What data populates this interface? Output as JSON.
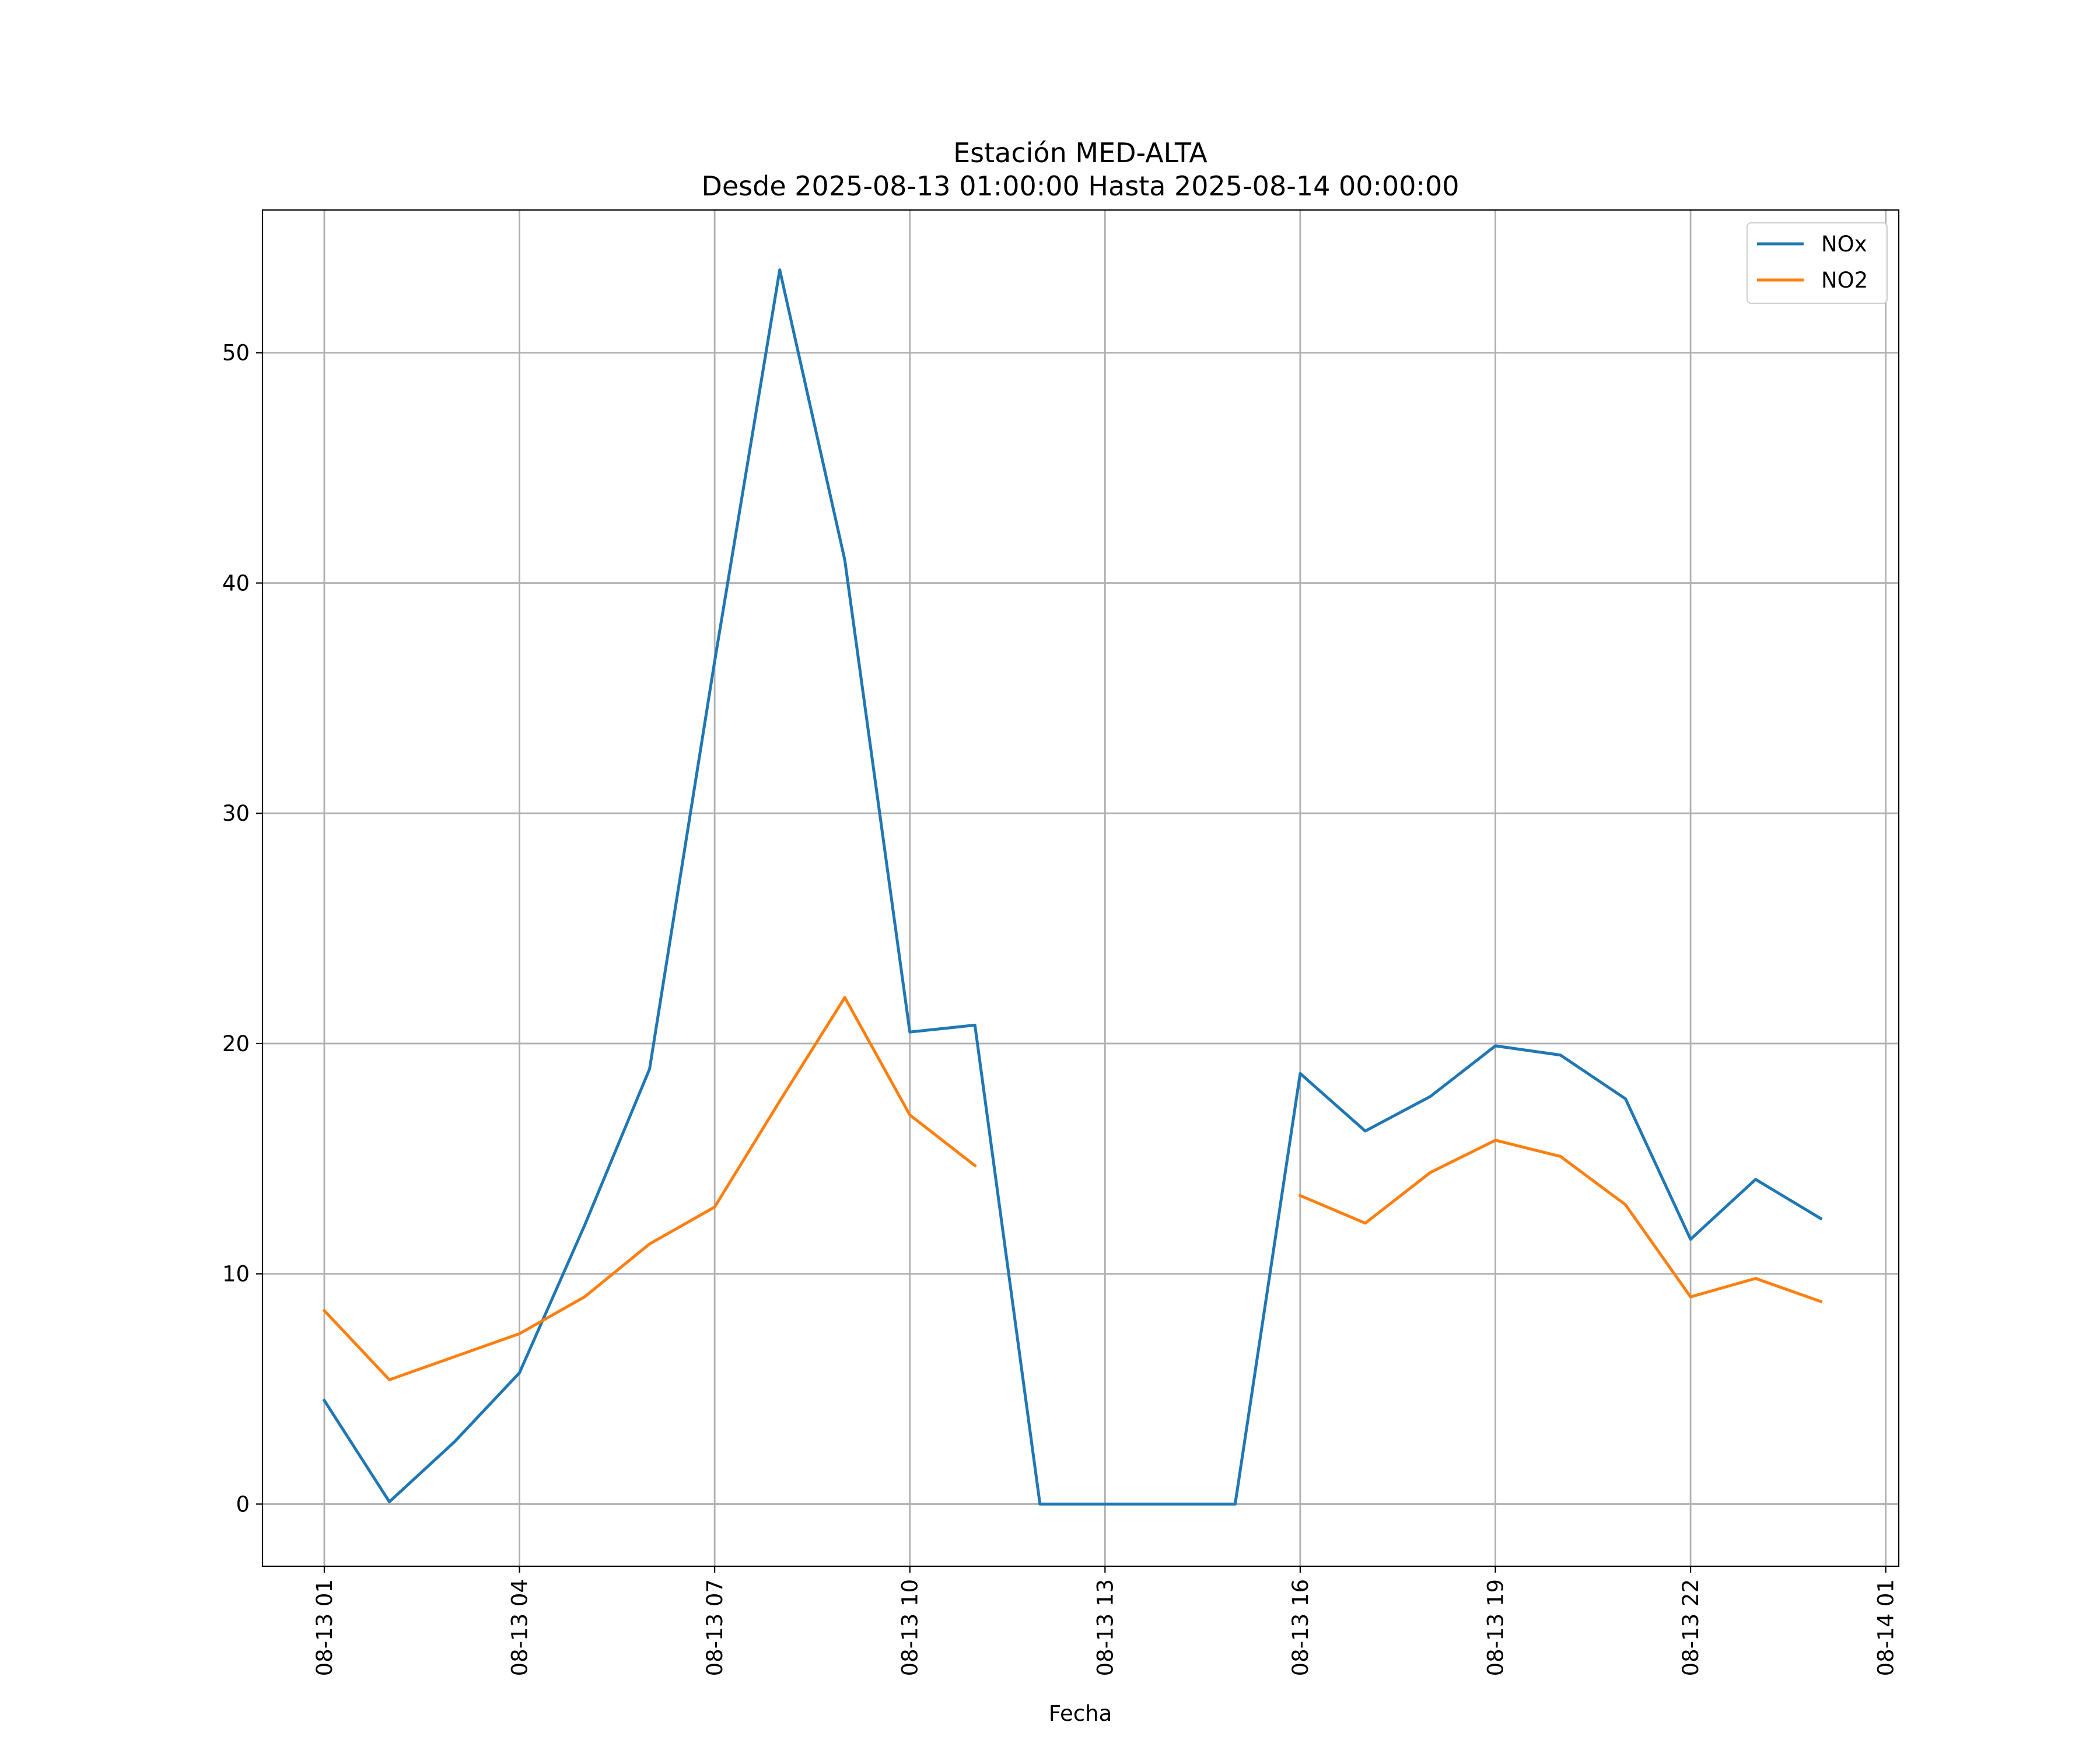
{
  "chart_data": {
    "type": "line",
    "title": "Estación MED-ALTA",
    "subtitle": "Desde 2025-08-13 01:00:00 Hasta 2025-08-14 00:00:00",
    "xlabel": "Fecha",
    "ylabel": "",
    "grid": true,
    "legend_position": "top-right",
    "ylim": [
      -2.7,
      56.2
    ],
    "xlim": [
      "2025-08-13 00:03",
      "2025-08-14 01:12"
    ],
    "x": [
      "2025-08-13 01:00",
      "2025-08-13 02:00",
      "2025-08-13 03:00",
      "2025-08-13 04:00",
      "2025-08-13 05:00",
      "2025-08-13 06:00",
      "2025-08-13 07:00",
      "2025-08-13 08:00",
      "2025-08-13 09:00",
      "2025-08-13 10:00",
      "2025-08-13 11:00",
      "2025-08-13 12:00",
      "2025-08-13 13:00",
      "2025-08-13 14:00",
      "2025-08-13 15:00",
      "2025-08-13 16:00",
      "2025-08-13 17:00",
      "2025-08-13 18:00",
      "2025-08-13 19:00",
      "2025-08-13 20:00",
      "2025-08-13 21:00",
      "2025-08-13 22:00",
      "2025-08-13 23:00",
      "2025-08-14 00:00"
    ],
    "x_ticks": [
      {
        "value": "2025-08-13 01:00",
        "label": "08-13 01"
      },
      {
        "value": "2025-08-13 04:00",
        "label": "08-13 04"
      },
      {
        "value": "2025-08-13 07:00",
        "label": "08-13 07"
      },
      {
        "value": "2025-08-13 10:00",
        "label": "08-13 10"
      },
      {
        "value": "2025-08-13 13:00",
        "label": "08-13 13"
      },
      {
        "value": "2025-08-13 16:00",
        "label": "08-13 16"
      },
      {
        "value": "2025-08-13 19:00",
        "label": "08-13 19"
      },
      {
        "value": "2025-08-13 22:00",
        "label": "08-13 22"
      },
      {
        "value": "2025-08-14 01:00",
        "label": "08-14 01"
      }
    ],
    "y_ticks": [
      0,
      10,
      20,
      30,
      40,
      50
    ],
    "series": [
      {
        "name": "NOx",
        "color": "#1f77b4",
        "values": [
          4.5,
          0.1,
          2.7,
          5.7,
          12.1,
          18.9,
          36.6,
          53.6,
          41.0,
          20.5,
          20.8,
          0.0,
          0.0,
          0.0,
          0.0,
          18.7,
          16.2,
          17.7,
          19.9,
          19.5,
          17.6,
          11.5,
          14.1,
          12.4
        ]
      },
      {
        "name": "NO2",
        "color": "#ff7f0e",
        "values": [
          8.4,
          5.4,
          6.4,
          7.4,
          9.0,
          11.3,
          12.9,
          17.5,
          22.0,
          16.9,
          14.7,
          null,
          null,
          null,
          null,
          13.4,
          12.2,
          14.4,
          15.8,
          15.1,
          13.0,
          9.0,
          9.8,
          8.8
        ]
      }
    ]
  }
}
